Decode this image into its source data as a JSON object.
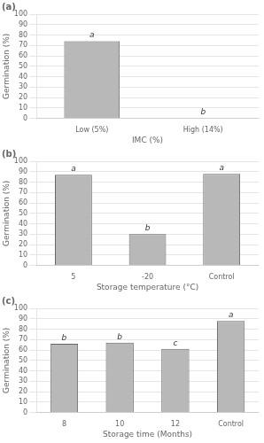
{
  "chart_data": [
    {
      "type": "bar",
      "title": "(a)",
      "categories": [
        "Low (5%)",
        "High (14%)"
      ],
      "values": [
        74,
        0
      ],
      "annotations": [
        "a",
        "b"
      ],
      "xlabel": "IMC (%)",
      "ylabel": "Germination (%)",
      "ylim": [
        0,
        100
      ],
      "yticks": [
        0,
        10,
        20,
        30,
        40,
        50,
        60,
        70,
        80,
        90,
        100
      ],
      "grid": true,
      "color": "#b8b8b8"
    },
    {
      "type": "bar",
      "title": "(b)",
      "categories": [
        "5",
        "-20",
        "Control"
      ],
      "values": [
        87,
        30,
        87.8
      ],
      "annotations": [
        "a",
        "b",
        "a"
      ],
      "xlabel": "Storage temperature (°C)",
      "ylabel": "Germination (%)",
      "ylim": [
        0,
        100
      ],
      "yticks": [
        0,
        10,
        20,
        30,
        40,
        50,
        60,
        70,
        80,
        90,
        100
      ],
      "grid": true,
      "color": "#b8b8b8"
    },
    {
      "type": "bar",
      "title": "(c)",
      "categories": [
        "8",
        "10",
        "12",
        "Control"
      ],
      "values": [
        66,
        67,
        61,
        87.8
      ],
      "annotations": [
        "b",
        "b",
        "c",
        "a"
      ],
      "xlabel": "Storage time (Months)",
      "ylabel": "Germination (%)",
      "ylim": [
        0,
        100
      ],
      "yticks": [
        0,
        10,
        20,
        30,
        40,
        50,
        60,
        70,
        80,
        90,
        100
      ],
      "grid": true,
      "color": "#b8b8b8"
    }
  ]
}
